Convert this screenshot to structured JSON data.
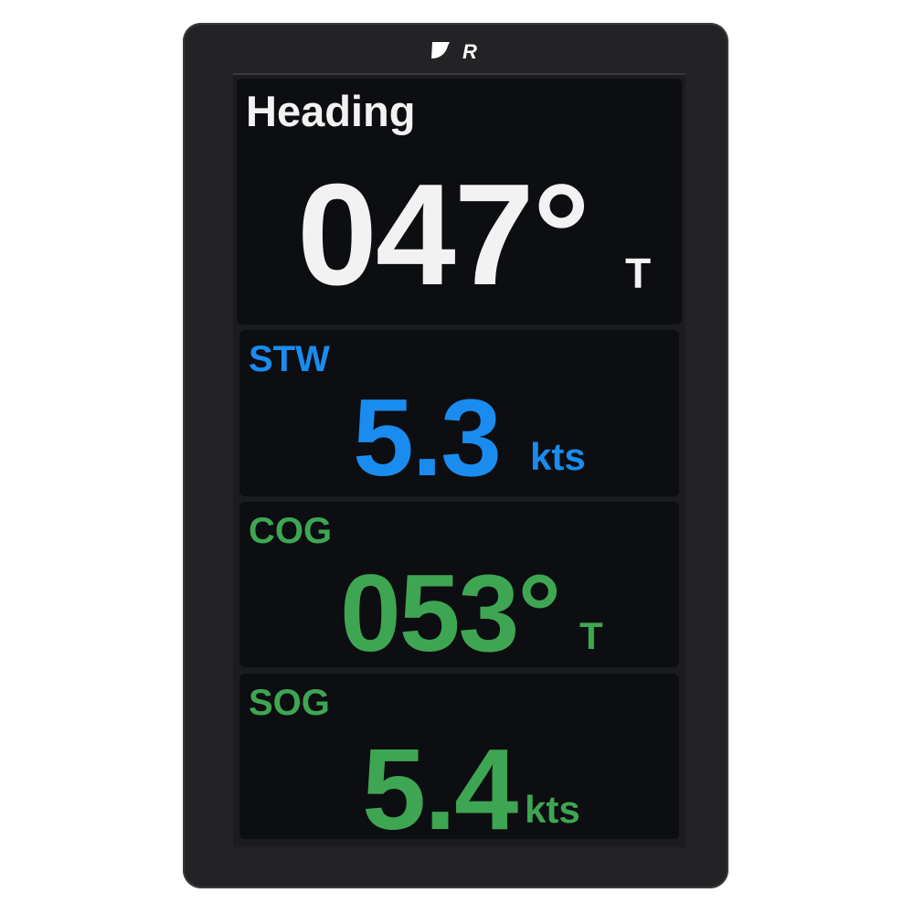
{
  "brand": {
    "logo": "Raymarine R"
  },
  "colors": {
    "heading": "#f2f2f2",
    "stw": "#1a8cf0",
    "cog": "#3ea652",
    "sog": "#3ea652"
  },
  "panels": [
    {
      "label": "Heading",
      "value": "047°",
      "unit": "T"
    },
    {
      "label": "STW",
      "value": "5.3",
      "unit": "kts"
    },
    {
      "label": "COG",
      "value": "053°",
      "unit": "T"
    },
    {
      "label": "SOG",
      "value": "5.4",
      "unit": "kts"
    }
  ]
}
